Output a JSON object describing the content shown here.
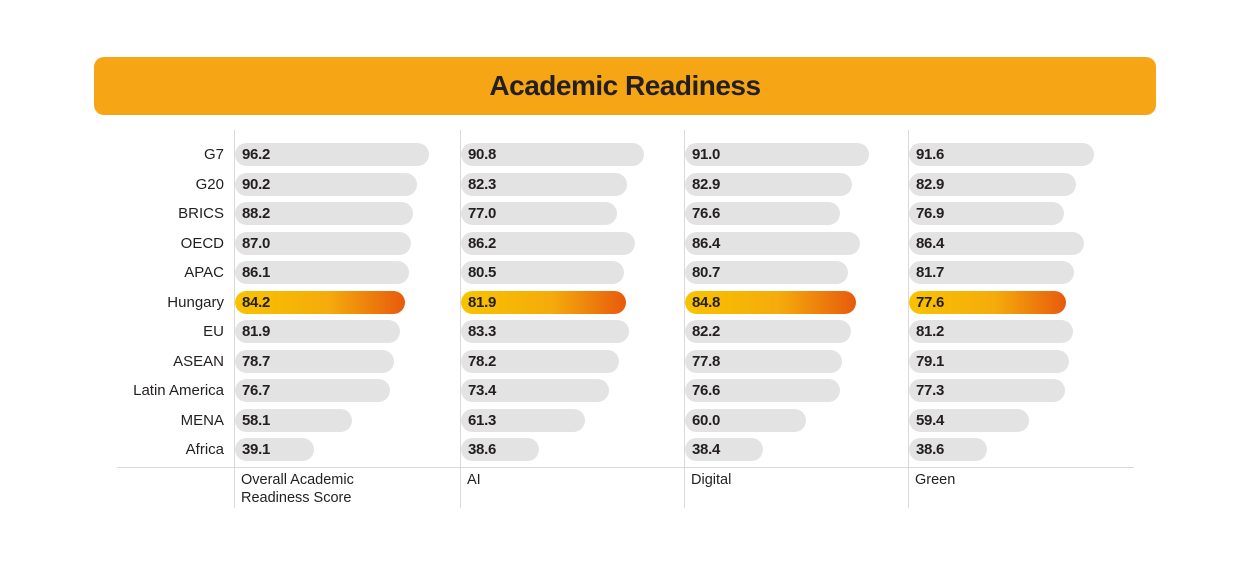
{
  "title": "Academic Readiness",
  "colors": {
    "title_bg": "#f6a615",
    "bar_default": "#e4e3e3",
    "highlight_start": "#f9c300",
    "highlight_end": "#e85a0c",
    "text": "#231f20"
  },
  "chart_data": {
    "type": "bar",
    "orientation": "horizontal",
    "title": "Academic Readiness",
    "categories": [
      "G7",
      "G20",
      "BRICS",
      "OECD",
      "APAC",
      "Hungary",
      "EU",
      "ASEAN",
      "Latin America",
      "MENA",
      "Africa"
    ],
    "highlight_category": "Hungary",
    "xlim": [
      0,
      100
    ],
    "series": [
      {
        "name": "Overall Academic Readiness Score",
        "values": [
          96.2,
          90.2,
          88.2,
          87.0,
          86.1,
          84.2,
          81.9,
          78.7,
          76.7,
          58.1,
          39.1
        ]
      },
      {
        "name": "AI",
        "values": [
          90.8,
          82.3,
          77.0,
          86.2,
          80.5,
          81.9,
          83.3,
          78.2,
          73.4,
          61.3,
          38.6
        ]
      },
      {
        "name": "Digital",
        "values": [
          91.0,
          82.9,
          76.6,
          86.4,
          80.7,
          84.8,
          82.2,
          77.8,
          76.6,
          60.0,
          38.4
        ]
      },
      {
        "name": "Green",
        "values": [
          91.6,
          82.9,
          76.9,
          86.4,
          81.7,
          77.6,
          81.2,
          79.1,
          77.3,
          59.4,
          38.6
        ]
      }
    ],
    "column_labels": [
      [
        "Overall Academic",
        "Readiness Score"
      ],
      [
        "AI"
      ],
      [
        "Digital"
      ],
      [
        "Green"
      ]
    ]
  }
}
